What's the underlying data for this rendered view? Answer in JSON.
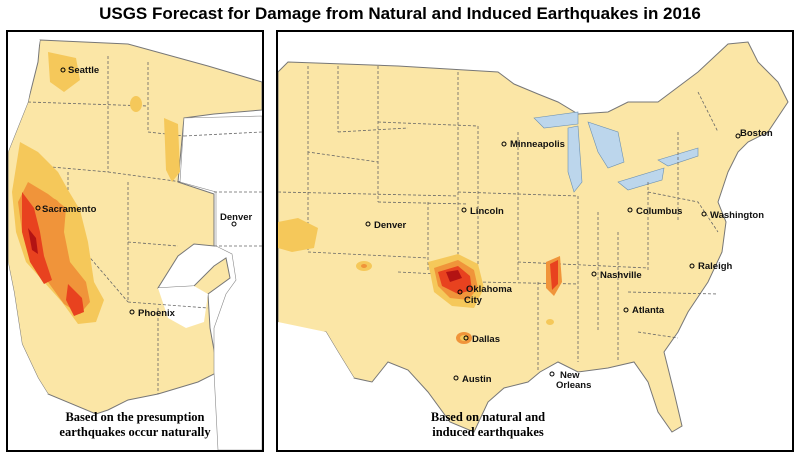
{
  "title": "USGS Forecast for Damage from Natural and Induced Earthquakes in 2016",
  "colors": {
    "land": "#fbe6a6",
    "outside": "#ffffff",
    "low_hazard": "#f5c85a",
    "moderate_hazard": "#f0943a",
    "high_hazard": "#e8421f",
    "very_high_hazard": "#b31313",
    "water": "#bcd6ec",
    "border": "#555555"
  },
  "west_map": {
    "caption_line1": "Based on the presumption",
    "caption_line2": "earthquakes occur naturally",
    "cities": {
      "seattle": "Seattle",
      "sacramento": "Sacramento",
      "denver": "Denver",
      "phoenix": "Phoenix"
    }
  },
  "east_map": {
    "caption_line1": "Based on natural and",
    "caption_line2": "induced earthquakes",
    "cities": {
      "minneapolis": "Minneapolis",
      "boston": "Boston",
      "denver": "Denver",
      "lincoln": "Lincoln",
      "columbus": "Columbus",
      "washington": "Washington",
      "nashville": "Nashville",
      "raleigh": "Raleigh",
      "oklahoma": "Oklahoma",
      "city": "City",
      "atlanta": "Atlanta",
      "dallas": "Dallas",
      "austin": "Austin",
      "new": "New",
      "orleans": "Orleans"
    }
  }
}
